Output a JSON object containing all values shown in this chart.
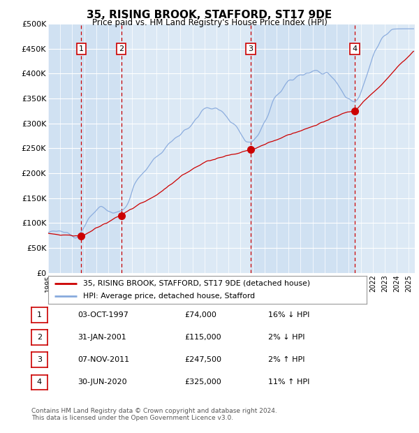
{
  "title": "35, RISING BROOK, STAFFORD, ST17 9DE",
  "subtitle": "Price paid vs. HM Land Registry's House Price Index (HPI)",
  "ylabel_ticks": [
    "£0",
    "£50K",
    "£100K",
    "£150K",
    "£200K",
    "£250K",
    "£300K",
    "£350K",
    "£400K",
    "£450K",
    "£500K"
  ],
  "ytick_values": [
    0,
    50000,
    100000,
    150000,
    200000,
    250000,
    300000,
    350000,
    400000,
    450000,
    500000
  ],
  "ylim": [
    0,
    500000
  ],
  "xlim_start": 1995.0,
  "xlim_end": 2025.5,
  "background_color": "#dce9f5",
  "grid_color": "#ffffff",
  "sale_color": "#cc0000",
  "hpi_color": "#88aadd",
  "vline_color": "#cc0000",
  "shade_color": "#c8ddf0",
  "transactions": [
    {
      "num": 1,
      "date_label": "03-OCT-1997",
      "price": 74000,
      "year": 1997.75,
      "pct": "16%",
      "dir": "↓"
    },
    {
      "num": 2,
      "date_label": "31-JAN-2001",
      "price": 115000,
      "year": 2001.08,
      "pct": "2%",
      "dir": "↓"
    },
    {
      "num": 3,
      "date_label": "07-NOV-2011",
      "price": 247500,
      "year": 2011.85,
      "pct": "2%",
      "dir": "↑"
    },
    {
      "num": 4,
      "date_label": "30-JUN-2020",
      "price": 325000,
      "year": 2020.5,
      "pct": "11%",
      "dir": "↑"
    }
  ],
  "legend_line1": "35, RISING BROOK, STAFFORD, ST17 9DE (detached house)",
  "legend_line2": "HPI: Average price, detached house, Stafford",
  "footer": "Contains HM Land Registry data © Crown copyright and database right 2024.\nThis data is licensed under the Open Government Licence v3.0.",
  "box_border_color": "#cc0000"
}
